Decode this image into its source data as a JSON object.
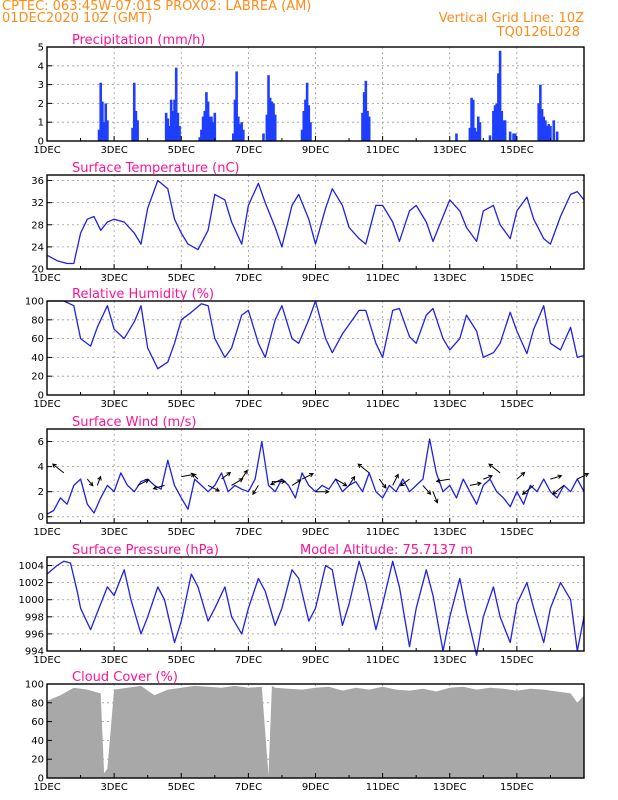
{
  "header": {
    "line1": "CPTEC:   063:45W-07:01S   PROX02: LABREA (AM)",
    "line2": "01DEC2020 10Z (GMT)",
    "grid_note": "Vertical Grid Line: 10Z",
    "code": "TQ0126L028"
  },
  "x_tick_labels": [
    "1DEC",
    "3DEC",
    "5DEC",
    "7DEC",
    "9DEC",
    "11DEC",
    "13DEC",
    "15DEC"
  ],
  "chart_data": [
    {
      "type": "bar",
      "title": "Precipitation (mm/h)",
      "ylim": [
        0,
        5
      ],
      "yticks": [
        0,
        1,
        2,
        3,
        4,
        5
      ],
      "color": "#1f3fff",
      "x": [
        1.55,
        1.6,
        1.65,
        1.7,
        1.75,
        1.8,
        2.55,
        2.6,
        2.65,
        2.7,
        3.55,
        3.6,
        3.65,
        3.7,
        3.75,
        3.8,
        3.85,
        3.9,
        3.95,
        4.55,
        4.6,
        4.65,
        4.7,
        4.75,
        4.8,
        4.85,
        4.9,
        4.95,
        5.0,
        5.55,
        5.6,
        5.65,
        5.7,
        5.75,
        5.8,
        5.85,
        6.45,
        6.55,
        6.6,
        6.65,
        6.7,
        6.75,
        6.8,
        7.6,
        7.65,
        7.7,
        7.75,
        7.8,
        7.85,
        9.4,
        9.45,
        9.5,
        9.55,
        9.6,
        12.2,
        12.6,
        12.65,
        12.7,
        12.75,
        12.8,
        12.85,
        12.9,
        13.2,
        13.3,
        13.35,
        13.4,
        13.45,
        13.5,
        13.55,
        13.6,
        13.65,
        13.8,
        13.9,
        13.95,
        14.65,
        14.7,
        14.75,
        14.8,
        14.85,
        14.9,
        14.95,
        15.0,
        15.1,
        15.2
      ],
      "values": [
        0.6,
        3.1,
        2.1,
        1.0,
        2.0,
        1.1,
        0.7,
        3.1,
        1.6,
        1.1,
        1.5,
        1.2,
        0.8,
        2.2,
        1.6,
        2.2,
        3.9,
        1.5,
        0.8,
        0.2,
        0.6,
        1.3,
        1.6,
        2.6,
        2.1,
        1.3,
        1.3,
        1.0,
        1.5,
        0.4,
        2.2,
        3.7,
        1.3,
        0.9,
        1.0,
        0.6,
        0.4,
        1.4,
        3.5,
        2.3,
        2.1,
        2.0,
        1.4,
        0.6,
        1.6,
        2.2,
        3.1,
        1.9,
        1.0,
        1.5,
        2.6,
        3.2,
        1.6,
        1.3,
        0.4,
        0.7,
        2.3,
        2.2,
        0.7,
        0.5,
        1.3,
        1.0,
        0.3,
        1.6,
        1.9,
        2.0,
        3.6,
        4.8,
        1.6,
        1.1,
        1.1,
        0.5,
        0.4,
        0.4,
        2.0,
        3.0,
        1.7,
        1.3,
        1.1,
        0.8,
        0.9,
        0.8,
        1.1,
        0.5
      ]
    },
    {
      "type": "line",
      "title": "Surface Temperature (nC)",
      "ylim": [
        20,
        37
      ],
      "yticks": [
        20,
        24,
        28,
        32,
        36
      ],
      "color": "#2020e8",
      "x": [
        0.0,
        0.3,
        0.6,
        0.8,
        1.0,
        1.2,
        1.4,
        1.6,
        1.8,
        2.0,
        2.3,
        2.6,
        2.8,
        3.0,
        3.3,
        3.6,
        3.8,
        4.0,
        4.2,
        4.5,
        4.8,
        5.0,
        5.3,
        5.5,
        5.8,
        6.0,
        6.3,
        6.5,
        6.8,
        7.0,
        7.3,
        7.5,
        7.8,
        8.0,
        8.3,
        8.5,
        8.8,
        9.0,
        9.3,
        9.5,
        9.8,
        10.0,
        10.3,
        10.5,
        10.8,
        11.0,
        11.3,
        11.5,
        11.8,
        12.0,
        12.3,
        12.5,
        12.8,
        13.0,
        13.3,
        13.5,
        13.8,
        14.0,
        14.3,
        14.5,
        14.8,
        15.0,
        15.3,
        15.6,
        15.8,
        16.0
      ],
      "values": [
        22.5,
        21.5,
        21.0,
        21.0,
        26.5,
        29.0,
        29.5,
        27.0,
        28.5,
        29.0,
        28.5,
        26.5,
        24.5,
        31.0,
        36.0,
        34.5,
        29.0,
        26.5,
        24.5,
        23.5,
        27.0,
        33.5,
        32.5,
        28.5,
        24.5,
        31.5,
        35.5,
        32.0,
        27.5,
        24.0,
        31.5,
        33.5,
        29.0,
        24.5,
        31.0,
        34.5,
        31.5,
        27.5,
        25.5,
        24.5,
        31.5,
        31.5,
        28.5,
        25.0,
        30.5,
        31.5,
        28.5,
        25.0,
        29.5,
        32.5,
        30.5,
        27.5,
        25.0,
        30.5,
        31.5,
        28.0,
        25.5,
        30.5,
        33.0,
        29.0,
        25.5,
        24.5,
        29.5,
        33.5,
        34.0,
        32.5
      ]
    },
    {
      "type": "line",
      "title": "Relative Humidity (%)",
      "ylim": [
        0,
        100
      ],
      "yticks": [
        0,
        20,
        40,
        60,
        80,
        100
      ],
      "color": "#2020e8",
      "x": [
        0.0,
        0.2,
        0.5,
        0.8,
        1.0,
        1.3,
        1.5,
        1.8,
        2.0,
        2.3,
        2.6,
        2.8,
        3.0,
        3.3,
        3.6,
        3.8,
        4.0,
        4.3,
        4.6,
        4.8,
        5.0,
        5.3,
        5.5,
        5.8,
        6.0,
        6.3,
        6.5,
        6.8,
        7.0,
        7.3,
        7.5,
        7.8,
        8.0,
        8.3,
        8.5,
        8.8,
        9.0,
        9.3,
        9.5,
        9.8,
        10.0,
        10.3,
        10.5,
        10.8,
        11.0,
        11.3,
        11.5,
        11.8,
        12.0,
        12.3,
        12.5,
        12.8,
        13.0,
        13.3,
        13.5,
        13.8,
        14.0,
        14.3,
        14.5,
        14.8,
        15.0,
        15.3,
        15.6,
        15.8,
        16.0
      ],
      "values": [
        100,
        100,
        100,
        95,
        60,
        52,
        72,
        95,
        70,
        60,
        78,
        95,
        50,
        28,
        35,
        55,
        80,
        88,
        97,
        95,
        60,
        40,
        50,
        85,
        90,
        55,
        40,
        80,
        95,
        60,
        55,
        80,
        100,
        60,
        45,
        65,
        75,
        90,
        90,
        55,
        40,
        90,
        92,
        62,
        55,
        85,
        92,
        60,
        48,
        60,
        85,
        68,
        40,
        45,
        55,
        88,
        68,
        44,
        70,
        95,
        55,
        48,
        72,
        40,
        42
      ]
    },
    {
      "type": "line",
      "title": "Surface Wind (m/s)",
      "ylim": [
        -0.5,
        7
      ],
      "yticks": [
        0,
        2,
        4,
        6
      ],
      "color": "#2020e8",
      "x": [
        0.0,
        0.2,
        0.4,
        0.6,
        0.8,
        1.0,
        1.2,
        1.4,
        1.6,
        1.8,
        2.0,
        2.2,
        2.4,
        2.6,
        2.8,
        3.0,
        3.2,
        3.4,
        3.6,
        3.8,
        4.0,
        4.2,
        4.4,
        4.6,
        4.8,
        5.0,
        5.2,
        5.4,
        5.6,
        5.8,
        6.0,
        6.2,
        6.4,
        6.6,
        6.8,
        7.0,
        7.2,
        7.4,
        7.6,
        7.8,
        8.0,
        8.2,
        8.4,
        8.6,
        8.8,
        9.0,
        9.2,
        9.4,
        9.6,
        9.8,
        10.0,
        10.2,
        10.4,
        10.6,
        10.8,
        11.0,
        11.2,
        11.4,
        11.6,
        11.8,
        12.0,
        12.2,
        12.4,
        12.6,
        12.8,
        13.0,
        13.2,
        13.4,
        13.6,
        13.8,
        14.0,
        14.2,
        14.4,
        14.6,
        14.8,
        15.0,
        15.2,
        15.4,
        15.6,
        15.8,
        16.0
      ],
      "values": [
        0.2,
        0.5,
        1.5,
        1.0,
        2.5,
        3.0,
        1.0,
        0.3,
        1.5,
        2.5,
        2.0,
        3.5,
        2.5,
        2.0,
        2.8,
        3.0,
        2.5,
        2.2,
        4.5,
        2.5,
        1.5,
        0.6,
        3.0,
        2.5,
        2.0,
        2.5,
        3.5,
        2.0,
        2.5,
        2.2,
        2.0,
        3.0,
        6.0,
        2.5,
        2.0,
        3.0,
        2.5,
        1.5,
        3.5,
        2.5,
        2.0,
        2.5,
        2.2,
        3.0,
        2.0,
        2.5,
        2.8,
        2.0,
        3.5,
        2.0,
        1.5,
        2.5,
        2.0,
        3.0,
        2.0,
        2.5,
        3.0,
        6.2,
        3.5,
        2.0,
        2.5,
        1.5,
        3.0,
        2.0,
        1.0,
        2.5,
        3.0,
        2.0,
        1.5,
        0.8,
        2.0,
        1.0,
        2.5,
        2.0,
        3.0,
        2.0,
        1.5,
        2.5,
        2.0,
        3.0,
        2.0
      ]
    },
    {
      "type": "line",
      "title": "Surface Pressure (hPa)",
      "annotation": "Model Altitude: 75.7137 m",
      "ylim": [
        994,
        1005
      ],
      "yticks": [
        994,
        996,
        998,
        1000,
        1002,
        1004
      ],
      "color": "#2020e8",
      "x": [
        0.0,
        0.3,
        0.5,
        0.7,
        0.9,
        1.0,
        1.3,
        1.5,
        1.8,
        2.0,
        2.3,
        2.5,
        2.8,
        3.0,
        3.3,
        3.5,
        3.8,
        4.0,
        4.3,
        4.5,
        4.8,
        5.0,
        5.3,
        5.5,
        5.8,
        6.0,
        6.3,
        6.5,
        6.8,
        7.0,
        7.3,
        7.5,
        7.8,
        8.0,
        8.3,
        8.5,
        8.8,
        9.0,
        9.3,
        9.5,
        9.8,
        10.0,
        10.3,
        10.5,
        10.8,
        11.0,
        11.3,
        11.5,
        11.8,
        12.0,
        12.3,
        12.5,
        12.8,
        13.0,
        13.3,
        13.5,
        13.8,
        14.0,
        14.3,
        14.5,
        14.8,
        15.0,
        15.3,
        15.6,
        15.8,
        16.0
      ],
      "values": [
        1003.0,
        1004.0,
        1004.5,
        1004.3,
        1001.0,
        999.0,
        996.5,
        998.5,
        1001.5,
        1000.5,
        1003.5,
        1000.0,
        996.0,
        998.0,
        1001.5,
        1000.0,
        995.0,
        997.5,
        1003.0,
        1001.5,
        997.5,
        999.0,
        1001.5,
        998.0,
        996.0,
        999.0,
        1002.5,
        1001.0,
        997.0,
        999.0,
        1003.5,
        1002.5,
        997.5,
        999.0,
        1004.0,
        1003.5,
        997.0,
        999.5,
        1004.5,
        1002.0,
        996.5,
        999.5,
        1004.5,
        1001.5,
        994.5,
        999.0,
        1003.5,
        1000.5,
        994.0,
        998.0,
        1002.5,
        998.5,
        993.5,
        998.0,
        1001.5,
        998.0,
        995.0,
        999.5,
        1002.0,
        999.0,
        995.0,
        999.0,
        1002.0,
        1000.0,
        994.0,
        998.0
      ]
    },
    {
      "type": "area",
      "title": "Cloud Cover (%)",
      "ylim": [
        0,
        100
      ],
      "yticks": [
        0,
        20,
        40,
        60,
        80,
        100
      ],
      "color": "#a8a8a8",
      "x": [
        0.0,
        0.4,
        0.8,
        1.2,
        1.6,
        1.7,
        1.8,
        2.0,
        2.4,
        2.8,
        3.2,
        3.6,
        4.0,
        4.4,
        4.8,
        5.2,
        5.6,
        6.0,
        6.4,
        6.6,
        6.7,
        6.8,
        7.2,
        7.6,
        8.0,
        8.4,
        8.8,
        9.2,
        9.6,
        10.0,
        10.4,
        10.8,
        11.2,
        11.6,
        12.0,
        12.4,
        12.8,
        13.2,
        13.6,
        14.0,
        14.4,
        14.8,
        15.2,
        15.6,
        15.8,
        16.0
      ],
      "values": [
        82,
        88,
        96,
        94,
        90,
        5,
        10,
        94,
        96,
        98,
        88,
        94,
        96,
        98,
        97,
        96,
        98,
        96,
        97,
        3,
        98,
        96,
        95,
        94,
        96,
        97,
        93,
        96,
        94,
        97,
        94,
        93,
        95,
        92,
        96,
        97,
        94,
        96,
        95,
        93,
        95,
        94,
        92,
        90,
        80,
        88
      ]
    }
  ],
  "wind_arrows": {
    "x": [
      0.5,
      1.2,
      1.5,
      2.7,
      3.5,
      4.0,
      4.5,
      4.8,
      5.2,
      5.5,
      5.8,
      6.3,
      6.7,
      7.0,
      7.3,
      7.6,
      8.0,
      8.6,
      9.0,
      9.6,
      9.9,
      10.3,
      10.8,
      11.2,
      11.5,
      12.0,
      12.6,
      13.0,
      13.5,
      14.0,
      14.5,
      15.0,
      15.4,
      15.8
    ],
    "y": [
      3.5,
      3.0,
      2.5,
      2.5,
      2.5,
      3.2,
      3.0,
      2.5,
      3.0,
      2.5,
      3.0,
      2.5,
      2.8,
      3.0,
      2.5,
      3.0,
      2.0,
      3.0,
      2.5,
      3.5,
      3.0,
      2.5,
      3.0,
      2.5,
      2.0,
      3.0,
      2.5,
      3.0,
      3.5,
      3.0,
      2.5,
      3.0,
      2.5,
      3.0
    ],
    "u": [
      -1.0,
      0.5,
      0.3,
      1.0,
      -1.0,
      1.2,
      -0.5,
      1.0,
      0.8,
      1.0,
      0.5,
      -0.5,
      1.2,
      -1.0,
      0.8,
      1.0,
      1.2,
      1.0,
      0.5,
      -1.0,
      0.6,
      0.5,
      -0.8,
      0.7,
      0.4,
      -1.2,
      1.0,
      0.8,
      -1.0,
      0.7,
      -1.0,
      1.0,
      -1.0,
      1.0
    ],
    "v": [
      0.8,
      -0.6,
      0.8,
      0.5,
      -0.3,
      0.2,
      0.5,
      -0.5,
      0.6,
      0.6,
      0.8,
      -0.8,
      0.0,
      -0.5,
      0.5,
      0.5,
      0.0,
      -0.6,
      0.8,
      0.8,
      -0.8,
      1.0,
      -0.6,
      -0.8,
      -1.0,
      -0.2,
      0.2,
      0.3,
      0.8,
      0.6,
      -0.8,
      0.3,
      -0.8,
      0.5
    ]
  }
}
